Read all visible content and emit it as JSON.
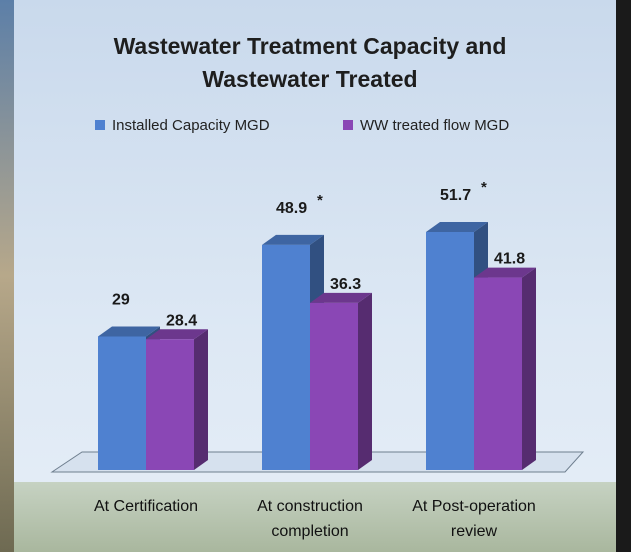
{
  "chart_data": {
    "type": "bar3d",
    "title": "Wastewater Treatment Capacity and Wastewater Treated",
    "categories": [
      "At Certification",
      "At construction completion",
      "At Post-operation review"
    ],
    "series": [
      {
        "name": "Installed Capacity MGD",
        "color": "#4f81d0",
        "values": [
          29,
          48.9,
          51.7
        ],
        "markers": [
          null,
          "*",
          "*"
        ]
      },
      {
        "name": "WW treated flow MGD",
        "color": "#8a47b5",
        "values": [
          28.4,
          36.3,
          41.8
        ]
      }
    ],
    "legend": "top"
  }
}
